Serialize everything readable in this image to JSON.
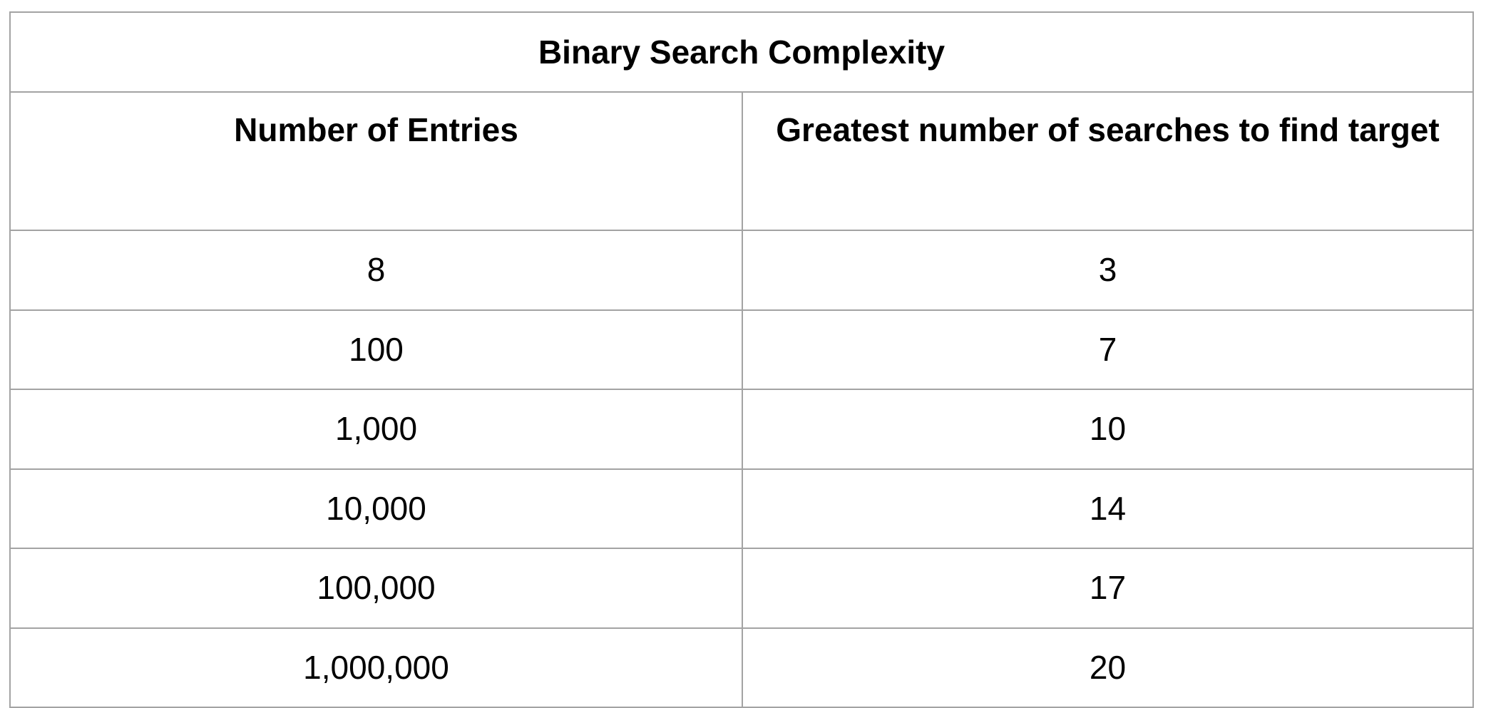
{
  "table": {
    "title": "Binary Search Complexity",
    "headers": [
      "Number of Entries",
      "Greatest number of searches to find target"
    ],
    "rows": [
      [
        "8",
        "3"
      ],
      [
        "100",
        "7"
      ],
      [
        "1,000",
        "10"
      ],
      [
        "10,000",
        "14"
      ],
      [
        "100,000",
        "17"
      ],
      [
        "1,000,000",
        "20"
      ]
    ]
  }
}
